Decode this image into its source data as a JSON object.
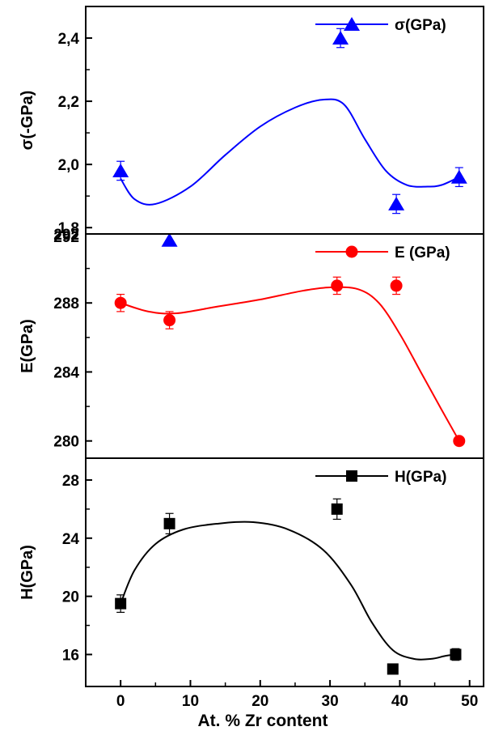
{
  "figure": {
    "xlabel": "At. % Zr content",
    "xlim": [
      -5,
      52
    ],
    "xticks": [
      "0",
      "10",
      "20",
      "30",
      "40",
      "50"
    ]
  },
  "chart_data": [
    {
      "type": "scatter",
      "ylabel": "σ(-GPa)",
      "ylim": [
        1.78,
        2.5
      ],
      "yticks": [
        "1,8",
        "2,0",
        "2,2",
        "2,4"
      ],
      "top_edge_label": "292",
      "legend": "top-right",
      "series": [
        {
          "name": "σ(GPa)",
          "color": "#0000ff",
          "marker": "triangle",
          "x": [
            0,
            7,
            31.5,
            39.5,
            48.5
          ],
          "y": [
            1.98,
            1.76,
            2.4,
            1.875,
            1.96
          ],
          "yerr": [
            0.03,
            0.0,
            0.03,
            0.03,
            0.03
          ],
          "fit_curve": {
            "x": [
              0,
              2,
              5,
              10,
              15,
              20,
              25,
              29,
              32,
              35,
              38,
              41,
              44,
              46,
              48.5
            ],
            "y": [
              1.955,
              1.89,
              1.875,
              1.93,
              2.03,
              2.12,
              2.18,
              2.205,
              2.19,
              2.08,
              1.98,
              1.935,
              1.93,
              1.935,
              1.96
            ]
          }
        }
      ]
    },
    {
      "type": "scatter",
      "ylabel": "E(GPa)",
      "ylim": [
        279,
        292
      ],
      "yticks": [
        "280",
        "284",
        "288",
        "292"
      ],
      "legend": "top-right",
      "series": [
        {
          "name": "E (GPa)",
          "color": "#ff0000",
          "marker": "circle",
          "x": [
            0,
            7,
            31,
            39.5,
            48.5
          ],
          "y": [
            288,
            287,
            289,
            289,
            280
          ],
          "yerr": [
            0.5,
            0.5,
            0.5,
            0.5,
            0.0
          ],
          "fit_curve": {
            "x": [
              0,
              4,
              8,
              14,
              20,
              26,
              30,
              34,
              37,
              40,
              43,
              46,
              48.5
            ],
            "y": [
              288,
              287.5,
              287.4,
              287.8,
              288.2,
              288.7,
              288.9,
              288.8,
              288.0,
              286.2,
              284.0,
              281.8,
              280
            ]
          }
        }
      ]
    },
    {
      "type": "scatter",
      "ylabel": "H(GPa)",
      "ylim": [
        13.8,
        29.5
      ],
      "yticks": [
        "16",
        "20",
        "24",
        "28"
      ],
      "legend": "top-right",
      "series": [
        {
          "name": "H(GPa)",
          "color": "#000000",
          "marker": "square",
          "x": [
            0,
            7,
            31,
            39,
            48
          ],
          "y": [
            19.5,
            25,
            26,
            15,
            16
          ],
          "yerr": [
            0.6,
            0.7,
            0.7,
            0.3,
            0.4
          ],
          "fit_curve": {
            "x": [
              0,
              2,
              5,
              9,
              14,
              19,
              24,
              29,
              33,
              36,
              39,
              42,
              44.5,
              46.5,
              48
            ],
            "y": [
              19.5,
              21.8,
              23.6,
              24.6,
              25.0,
              25.1,
              24.6,
              23.2,
              20.8,
              18.2,
              16.3,
              15.7,
              15.7,
              15.9,
              16
            ]
          }
        }
      ]
    }
  ]
}
